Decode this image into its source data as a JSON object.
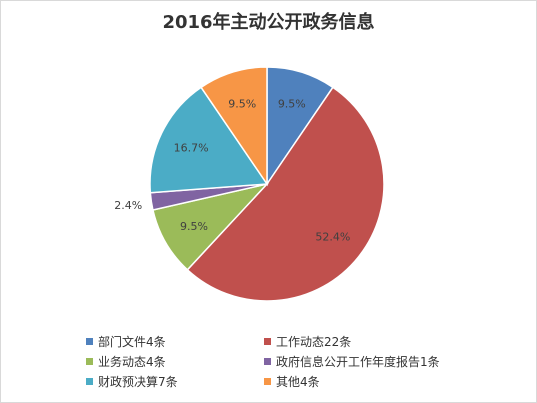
{
  "chart_data": {
    "type": "pie",
    "title": "2016年主动公开政务信息",
    "start_angle_deg": 0,
    "direction": "clockwise",
    "legend_position": "bottom",
    "slices": [
      {
        "legend": "部门文件4条",
        "value": 4,
        "percent_label": "9.5%",
        "color": "#4F81BD"
      },
      {
        "legend": "工作动态22条",
        "value": 22,
        "percent_label": "52.4%",
        "color": "#C0504D"
      },
      {
        "legend": "业务动态4条",
        "value": 4,
        "percent_label": "9.5%",
        "color": "#9BBB59"
      },
      {
        "legend": "政府信息公开工作年度报告1条",
        "value": 1,
        "percent_label": "2.4%",
        "color": "#8064A2"
      },
      {
        "legend": "财政预决算7条",
        "value": 7,
        "percent_label": "16.7%",
        "color": "#4BACC6"
      },
      {
        "legend": "其他4条",
        "value": 4,
        "percent_label": "9.5%",
        "color": "#F79646"
      }
    ]
  }
}
